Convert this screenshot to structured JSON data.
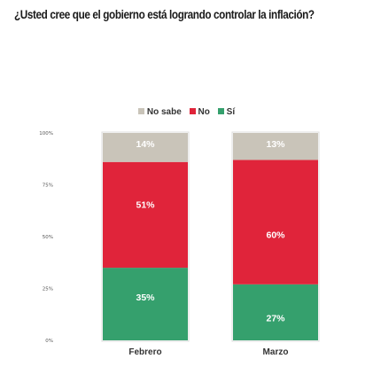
{
  "title": "¿Usted cree que el gobierno está logrando controlar la inflación?",
  "legend": [
    {
      "label": "No sabe",
      "color": "#c9c4b9"
    },
    {
      "label": "No",
      "color": "#e0243a"
    },
    {
      "label": "Sí",
      "color": "#35a06d"
    }
  ],
  "chart_data": {
    "type": "bar",
    "stacked": true,
    "categories": [
      "Febrero",
      "Marzo"
    ],
    "series": [
      {
        "name": "Sí",
        "values": [
          35,
          27
        ],
        "labels": [
          "35%",
          "27%"
        ],
        "color": "#35a06d"
      },
      {
        "name": "No",
        "values": [
          51,
          60
        ],
        "labels": [
          "51%",
          "60%"
        ],
        "color": "#e0243a"
      },
      {
        "name": "No sabe",
        "values": [
          14,
          13
        ],
        "labels": [
          "14%",
          "13%"
        ],
        "color": "#c9c4b9"
      }
    ],
    "yticks": [
      {
        "value": 0,
        "label": "0%"
      },
      {
        "value": 25,
        "label": "25%"
      },
      {
        "value": 50,
        "label": "50%"
      },
      {
        "value": 75,
        "label": "75%"
      },
      {
        "value": 100,
        "label": "100%"
      }
    ],
    "ylim": [
      0,
      100
    ],
    "legend_position": "top"
  }
}
